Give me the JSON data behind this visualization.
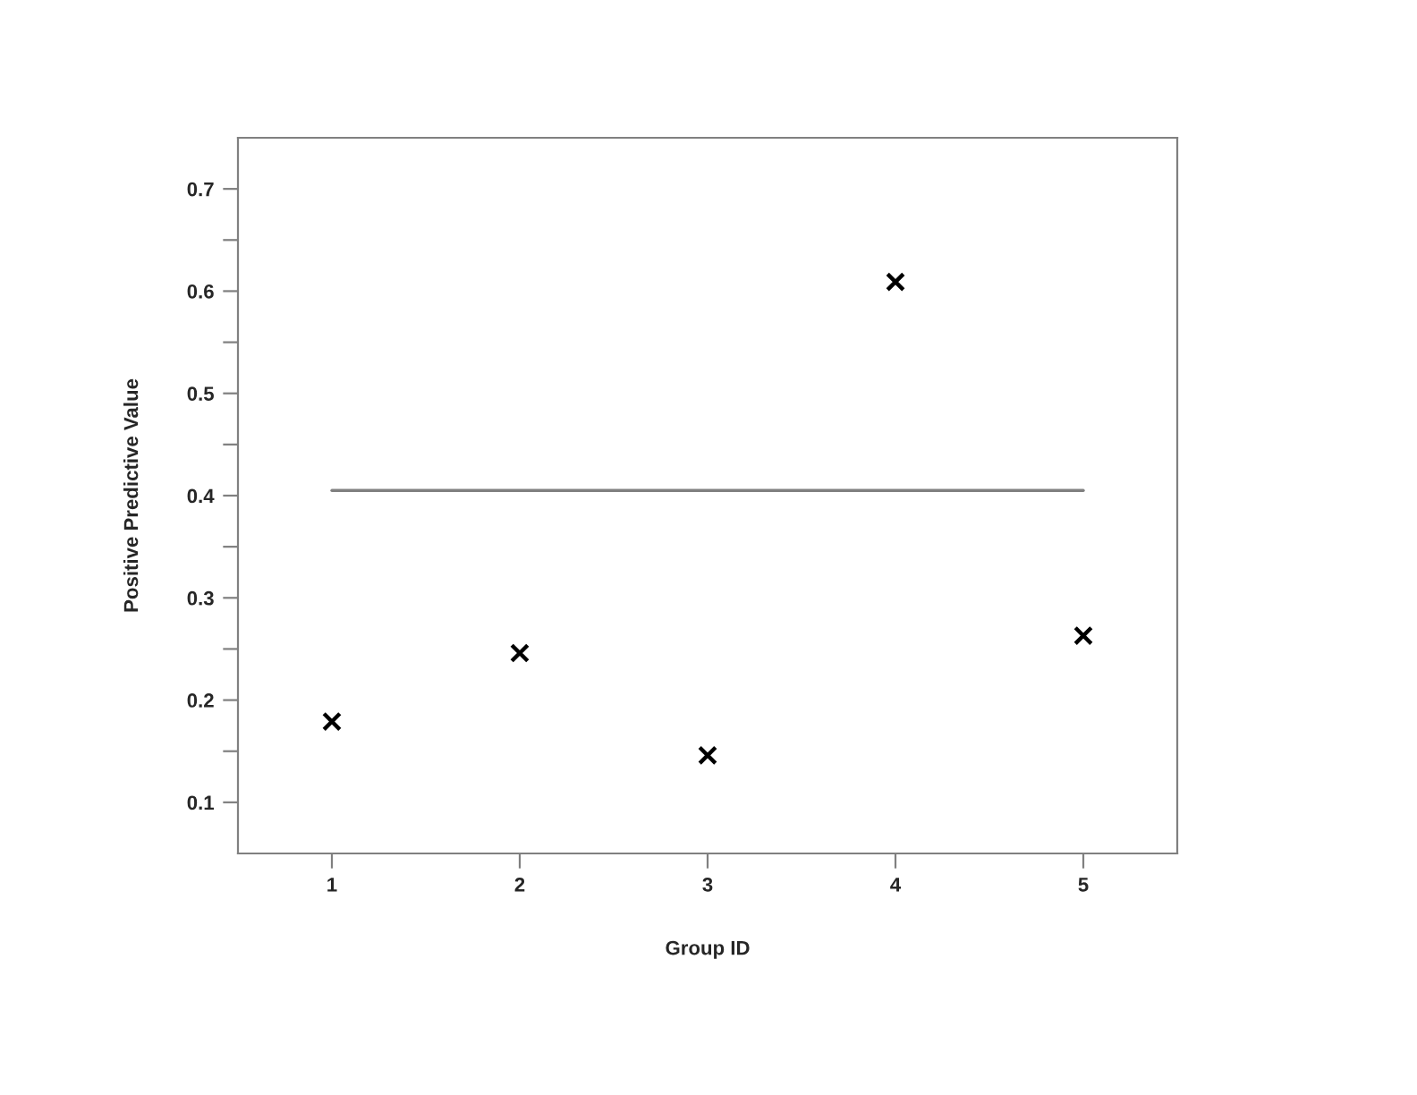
{
  "chart_data": {
    "type": "scatter",
    "xlabel": "Group ID",
    "ylabel": "Positive Predictive Value",
    "x": [
      1,
      2,
      3,
      4,
      5
    ],
    "series": [
      {
        "color": "#000000",
        "marker": "cross",
        "values": [
          0.179,
          0.246,
          0.146,
          0.609,
          0.263
        ]
      },
      {
        "type": "line",
        "color": "#808080",
        "marker": "none",
        "x": [
          1,
          5
        ],
        "values": [
          0.405,
          0.405
        ]
      }
    ],
    "xlim": [
      0.5,
      5.5
    ],
    "xticks": [
      1,
      2,
      3,
      4,
      5
    ],
    "ylim": [
      0.05,
      0.75
    ],
    "yticks": [
      0.1,
      {
        "value": 0.15,
        "label": null
      },
      0.2,
      {
        "value": 0.25,
        "label": null
      },
      0.3,
      {
        "value": 0.35,
        "label": null
      },
      0.4,
      {
        "value": 0.45,
        "label": null
      },
      0.5,
      {
        "value": 0.55,
        "label": null
      },
      0.6,
      {
        "value": 0.65,
        "label": null
      },
      0.7
    ],
    "grid": false,
    "legend": false
  }
}
